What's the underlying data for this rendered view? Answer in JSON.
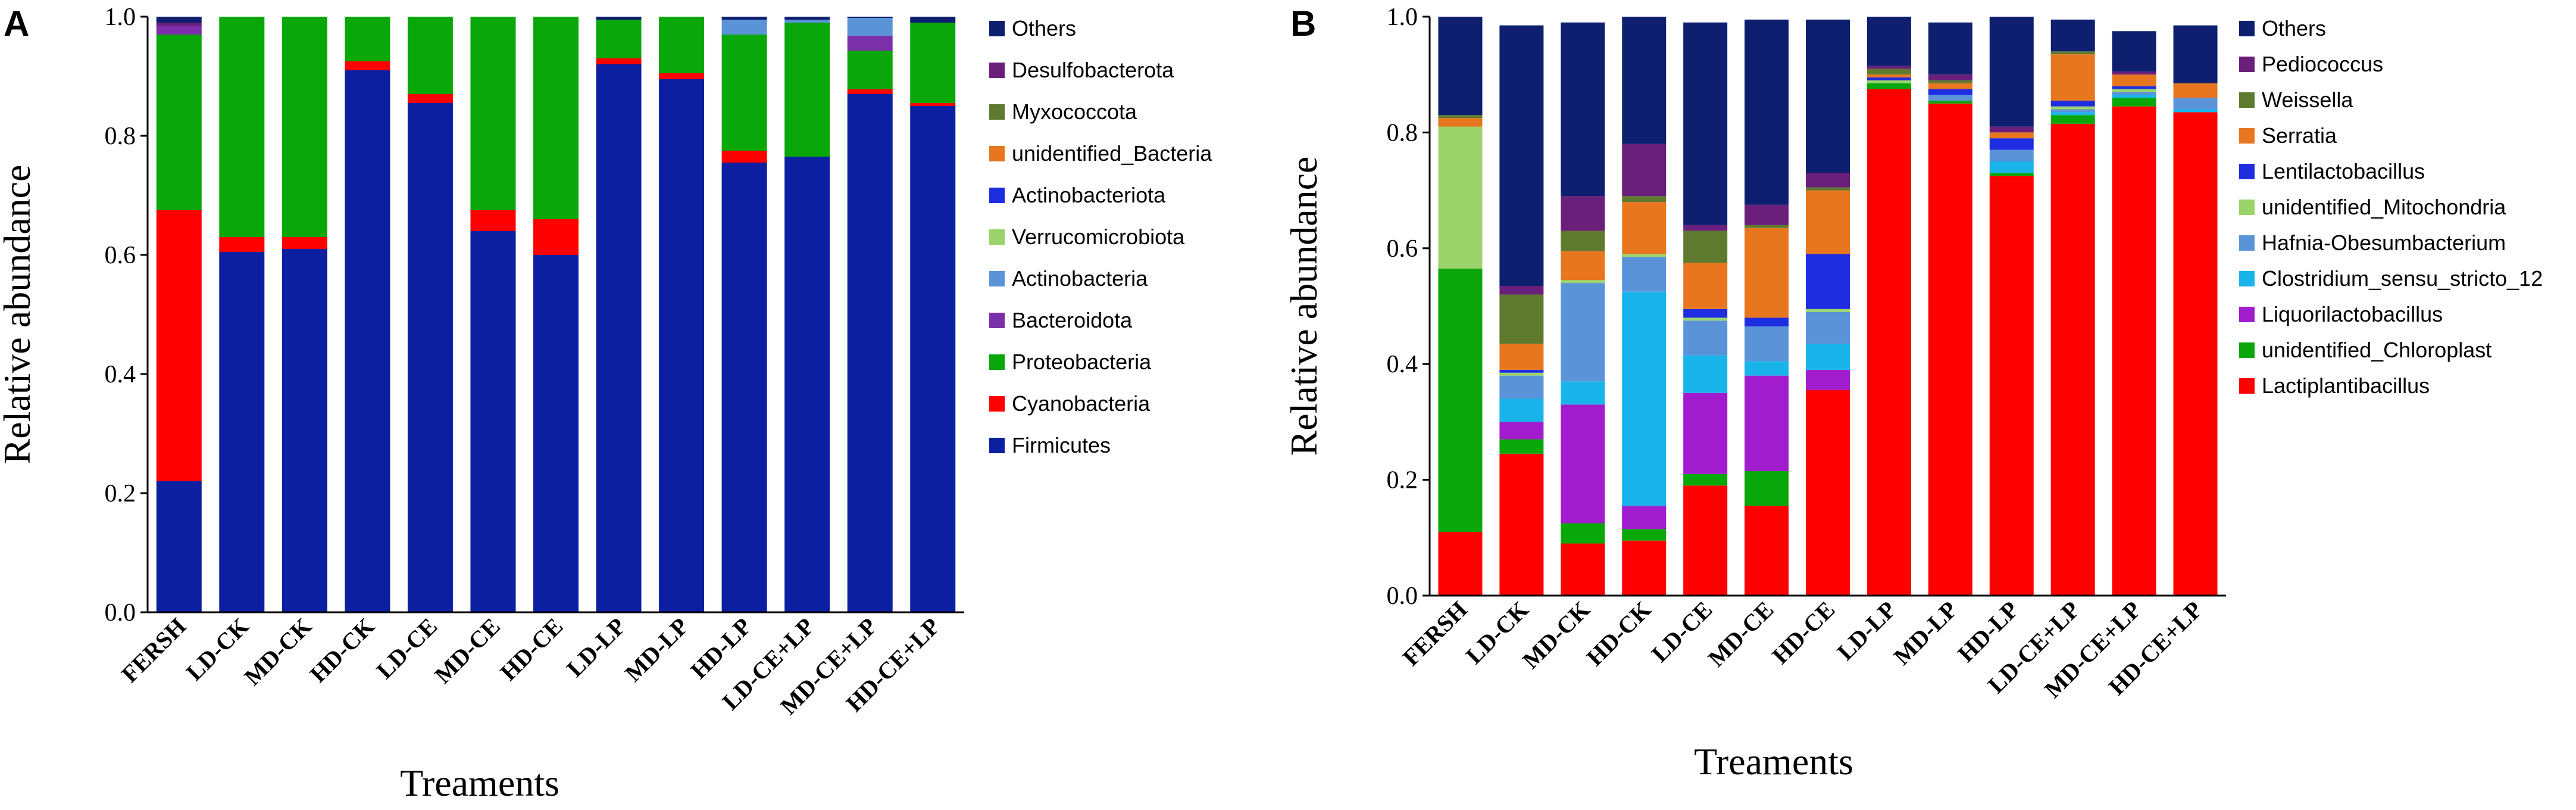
{
  "chart_data": [
    {
      "type": "bar",
      "stacked": true,
      "panel": "A",
      "xlabel": "Treaments",
      "ylabel": "Relative abundance",
      "ylim": [
        0,
        1
      ],
      "yticks": [
        "0.0",
        "0.2",
        "0.4",
        "0.6",
        "0.8",
        "1.0"
      ],
      "categories": [
        "FERSH",
        "LD-CK",
        "MD-CK",
        "HD-CK",
        "LD-CE",
        "MD-CE",
        "HD-CE",
        "LD-LP",
        "MD-LP",
        "HD-LP",
        "LD-CE+LP",
        "MD-CE+LP",
        "HD-CE+LP"
      ],
      "series": [
        {
          "name": "Firmicutes",
          "color": "#0b1fa0",
          "values": [
            0.22,
            0.605,
            0.61,
            0.91,
            0.855,
            0.64,
            0.6,
            0.92,
            0.895,
            0.755,
            0.765,
            0.87,
            0.85
          ]
        },
        {
          "name": "Cyanobacteria",
          "color": "#ff0000",
          "values": [
            0.455,
            0.025,
            0.02,
            0.015,
            0.015,
            0.035,
            0.06,
            0.01,
            0.01,
            0.02,
            0.0,
            0.008,
            0.005
          ]
        },
        {
          "name": "Proteobacteria",
          "color": "#0aa70a",
          "values": [
            0.295,
            0.37,
            0.37,
            0.075,
            0.13,
            0.325,
            0.34,
            0.065,
            0.095,
            0.195,
            0.225,
            0.065,
            0.135
          ]
        },
        {
          "name": "Bacteroidota",
          "color": "#7b2fa8",
          "values": [
            0.015,
            0.0,
            0.0,
            0.0,
            0.0,
            0.0,
            0.0,
            0.0,
            0.0,
            0.0,
            0.0,
            0.025,
            0.0
          ]
        },
        {
          "name": "Actinobacteria",
          "color": "#5b93d9",
          "values": [
            0.0,
            0.0,
            0.0,
            0.0,
            0.0,
            0.0,
            0.0,
            0.0,
            0.0,
            0.025,
            0.005,
            0.03,
            0.0
          ]
        },
        {
          "name": "Verrucomicrobiota",
          "color": "#9bd46a",
          "values": [
            0.0,
            0.0,
            0.0,
            0.0,
            0.0,
            0.0,
            0.0,
            0.0,
            0.0,
            0.0,
            0.0,
            0.0,
            0.0
          ]
        },
        {
          "name": "Actinobacteriota",
          "color": "#1f2de0",
          "values": [
            0.0,
            0.0,
            0.0,
            0.0,
            0.0,
            0.0,
            0.0,
            0.0,
            0.0,
            0.0,
            0.0,
            0.0,
            0.0
          ]
        },
        {
          "name": "unidentified_Bacteria",
          "color": "#e8761e",
          "values": [
            0.0,
            0.0,
            0.0,
            0.0,
            0.0,
            0.0,
            0.0,
            0.0,
            0.0,
            0.0,
            0.0,
            0.0,
            0.0
          ]
        },
        {
          "name": "Myxococcota",
          "color": "#5e7a2e",
          "values": [
            0.0,
            0.0,
            0.0,
            0.0,
            0.0,
            0.0,
            0.0,
            0.0,
            0.0,
            0.0,
            0.0,
            0.0,
            0.0
          ]
        },
        {
          "name": "Desulfobacterota",
          "color": "#6a1f7a",
          "values": [
            0.005,
            0.0,
            0.0,
            0.0,
            0.0,
            0.0,
            0.0,
            0.0,
            0.0,
            0.0,
            0.0,
            0.0,
            0.0
          ]
        },
        {
          "name": "Others",
          "color": "#0d1f6e",
          "values": [
            0.01,
            0.0,
            0.0,
            0.0,
            0.0,
            0.0,
            0.0,
            0.005,
            0.0,
            0.005,
            0.005,
            0.002,
            0.01
          ]
        }
      ]
    },
    {
      "type": "bar",
      "stacked": true,
      "panel": "B",
      "xlabel": "Treaments",
      "ylabel": "Relative abundance",
      "ylim": [
        0,
        1
      ],
      "yticks": [
        "0.0",
        "0.2",
        "0.4",
        "0.6",
        "0.8",
        "1.0"
      ],
      "categories": [
        "FERSH",
        "LD-CK",
        "MD-CK",
        "HD-CK",
        "LD-CE",
        "MD-CE",
        "HD-CE",
        "LD-LP",
        "MD-LP",
        "HD-LP",
        "LD-CE+LP",
        "MD-CE+LP",
        "HD-CE+LP"
      ],
      "series": [
        {
          "name": "Lactiplantibacillus",
          "color": "#ff0000",
          "values": [
            0.11,
            0.245,
            0.09,
            0.095,
            0.19,
            0.155,
            0.355,
            0.875,
            0.85,
            0.725,
            0.815,
            0.845,
            0.835
          ]
        },
        {
          "name": "unidentified_Chloroplast",
          "color": "#0aa70a",
          "values": [
            0.455,
            0.025,
            0.035,
            0.02,
            0.02,
            0.06,
            0.0,
            0.01,
            0.005,
            0.005,
            0.015,
            0.015,
            0.0
          ]
        },
        {
          "name": "Liquorilactobacillus",
          "color": "#a11ccc",
          "values": [
            0.0,
            0.03,
            0.205,
            0.04,
            0.14,
            0.165,
            0.035,
            0.0,
            0.0,
            0.0,
            0.0,
            0.0,
            0.0
          ]
        },
        {
          "name": "Clostridium_sensu_stricto_12",
          "color": "#18b4ea",
          "values": [
            0.0,
            0.04,
            0.04,
            0.37,
            0.065,
            0.025,
            0.045,
            0.0,
            0.0,
            0.02,
            0.005,
            0.005,
            0.005
          ]
        },
        {
          "name": "Hafnia-Obesumbacterium",
          "color": "#5b93d9",
          "values": [
            0.0,
            0.04,
            0.17,
            0.06,
            0.06,
            0.06,
            0.055,
            0.0,
            0.01,
            0.02,
            0.005,
            0.005,
            0.02
          ]
        },
        {
          "name": "unidentified_Mitochondria",
          "color": "#9bd46a",
          "values": [
            0.245,
            0.005,
            0.005,
            0.005,
            0.005,
            0.0,
            0.005,
            0.005,
            0.0,
            0.0,
            0.005,
            0.005,
            0.0
          ]
        },
        {
          "name": "Lentilactobacillus",
          "color": "#1f2de0",
          "values": [
            0.0,
            0.005,
            0.0,
            0.0,
            0.015,
            0.015,
            0.095,
            0.005,
            0.01,
            0.02,
            0.01,
            0.005,
            0.0
          ]
        },
        {
          "name": "Serratia",
          "color": "#e8761e",
          "values": [
            0.015,
            0.045,
            0.05,
            0.09,
            0.08,
            0.155,
            0.11,
            0.005,
            0.01,
            0.01,
            0.08,
            0.02,
            0.025
          ]
        },
        {
          "name": "Weissella",
          "color": "#5e7a2e",
          "values": [
            0.005,
            0.085,
            0.035,
            0.01,
            0.055,
            0.005,
            0.005,
            0.01,
            0.005,
            0.0,
            0.005,
            0.0,
            0.0
          ]
        },
        {
          "name": "Pediococcus",
          "color": "#6a1f7a",
          "values": [
            0.0,
            0.015,
            0.06,
            0.09,
            0.01,
            0.035,
            0.025,
            0.005,
            0.01,
            0.01,
            0.0,
            0.005,
            0.0
          ]
        },
        {
          "name": "Others",
          "color": "#0d1f6e",
          "values": [
            0.17,
            0.45,
            0.3,
            0.22,
            0.35,
            0.32,
            0.265,
            0.085,
            0.09,
            0.19,
            0.055,
            0.07,
            0.1
          ]
        }
      ]
    }
  ]
}
